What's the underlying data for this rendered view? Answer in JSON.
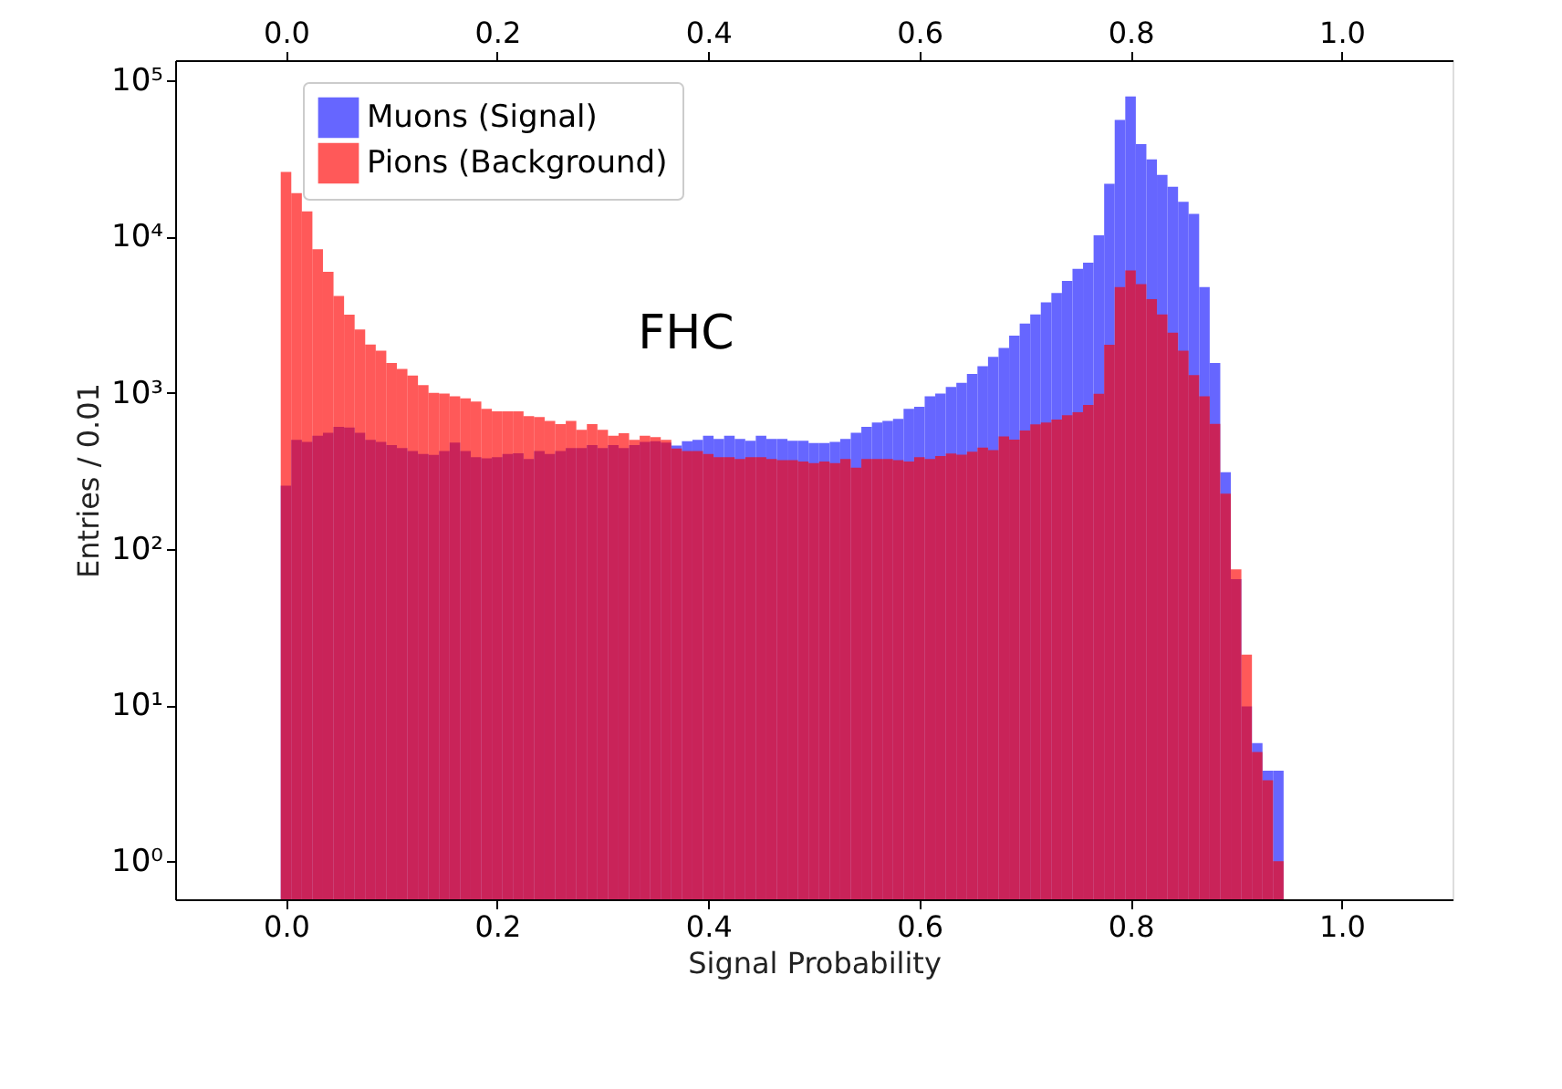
{
  "chart_data": {
    "type": "histogram",
    "xlabel": "Signal Probability",
    "ylabel": "Entries / 0.01",
    "annotations": [
      "FHC"
    ],
    "bins": [
      -0.005,
      0.005,
      0.015,
      0.025,
      0.035,
      0.045,
      0.055,
      0.065,
      0.075,
      0.085,
      0.095,
      0.105,
      0.115,
      0.125,
      0.135,
      0.145,
      0.155,
      0.165,
      0.175,
      0.185,
      0.195,
      0.205,
      0.215,
      0.225,
      0.235,
      0.245,
      0.255,
      0.265,
      0.275,
      0.285,
      0.295,
      0.305,
      0.315,
      0.325,
      0.335,
      0.345,
      0.355,
      0.365,
      0.375,
      0.385,
      0.395,
      0.405,
      0.415,
      0.425,
      0.435,
      0.445,
      0.455,
      0.465,
      0.475,
      0.485,
      0.495,
      0.505,
      0.515,
      0.525,
      0.535,
      0.545,
      0.555,
      0.565,
      0.575,
      0.585,
      0.595,
      0.605,
      0.615,
      0.625,
      0.635,
      0.645,
      0.655,
      0.665,
      0.675,
      0.685,
      0.695,
      0.705,
      0.715,
      0.725,
      0.735,
      0.745,
      0.755,
      0.765,
      0.775,
      0.785,
      0.795,
      0.805,
      0.815,
      0.825,
      0.835,
      0.845,
      0.855,
      0.865,
      0.875,
      0.885,
      0.895,
      0.905,
      0.915,
      0.925,
      0.935,
      0.945
    ],
    "series": [
      {
        "name": "Muons (Signal)",
        "color": "#6666ff",
        "values": [
          254,
          500,
          485,
          530,
          555,
          605,
          600,
          555,
          500,
          485,
          463,
          442,
          424,
          405,
          400,
          424,
          480,
          424,
          387,
          380,
          387,
          405,
          410,
          377,
          424,
          405,
          424,
          442,
          442,
          463,
          442,
          463,
          442,
          463,
          485,
          490,
          480,
          460,
          490,
          500,
          530,
          507,
          530,
          507,
          493,
          530,
          507,
          507,
          493,
          493,
          476,
          476,
          484,
          507,
          555,
          606,
          645,
          660,
          680,
          790,
          815,
          950,
          990,
          1090,
          1160,
          1320,
          1480,
          1700,
          1940,
          2320,
          2780,
          3180,
          3800,
          4350,
          5200,
          6230,
          6810,
          10200,
          21800,
          55900,
          79000,
          39100,
          31300,
          24900,
          20900,
          16700,
          14000,
          4760,
          1550,
          310,
          64,
          9.8,
          5.7,
          3.8,
          3.8
        ]
      },
      {
        "name": "Pions (Background)",
        "color": "#ff5959",
        "values": [
          26000,
          19000,
          14500,
          8300,
          5950,
          4170,
          3170,
          2540,
          2040,
          1860,
          1550,
          1420,
          1290,
          1120,
          1000,
          990,
          950,
          920,
          880,
          790,
          760,
          760,
          760,
          710,
          700,
          660,
          630,
          660,
          580,
          630,
          580,
          530,
          550,
          500,
          530,
          520,
          500,
          440,
          424,
          424,
          405,
          387,
          387,
          377,
          387,
          387,
          377,
          370,
          370,
          363,
          354,
          363,
          354,
          377,
          332,
          377,
          377,
          377,
          370,
          363,
          387,
          377,
          394,
          408,
          401,
          419,
          446,
          430,
          525,
          502,
          574,
          628,
          645,
          675,
          718,
          751,
          837,
          984,
          2030,
          4760,
          6070,
          4970,
          3980,
          3180,
          2430,
          1860,
          1300,
          950,
          632,
          226,
          74,
          21,
          5,
          3.3,
          1
        ]
      }
    ],
    "xlim": [
      -0.105,
      1.105
    ],
    "xticks": [
      {
        "value": 0,
        "label": "0.0"
      },
      {
        "value": 0.2,
        "label": "0.2"
      },
      {
        "value": 0.4,
        "label": "0.4"
      },
      {
        "value": 0.6,
        "label": "0.6"
      },
      {
        "value": 0.8,
        "label": "0.8"
      },
      {
        "value": 1,
        "label": "1.0"
      }
    ],
    "x2lim": [
      -0.105,
      1.105
    ],
    "x2ticks": [
      {
        "value": 0,
        "label": "0.0"
      },
      {
        "value": 0.2,
        "label": "0.2"
      },
      {
        "value": 0.4,
        "label": "0.4"
      },
      {
        "value": 0.6,
        "label": "0.6"
      },
      {
        "value": 0.8,
        "label": "0.8"
      },
      {
        "value": 1,
        "label": "1.0"
      }
    ],
    "ylim": [
      0.57,
      135000
    ],
    "yticks": [
      {
        "value": 1,
        "label": "10⁰"
      },
      {
        "value": 10,
        "label": "10¹"
      },
      {
        "value": 100,
        "label": "10²"
      },
      {
        "value": 1000,
        "label": "10³"
      },
      {
        "value": 10000,
        "label": "10⁴"
      },
      {
        "value": 100000,
        "label": "10⁵"
      }
    ],
    "log": true,
    "grid": false,
    "legend": "top left"
  }
}
